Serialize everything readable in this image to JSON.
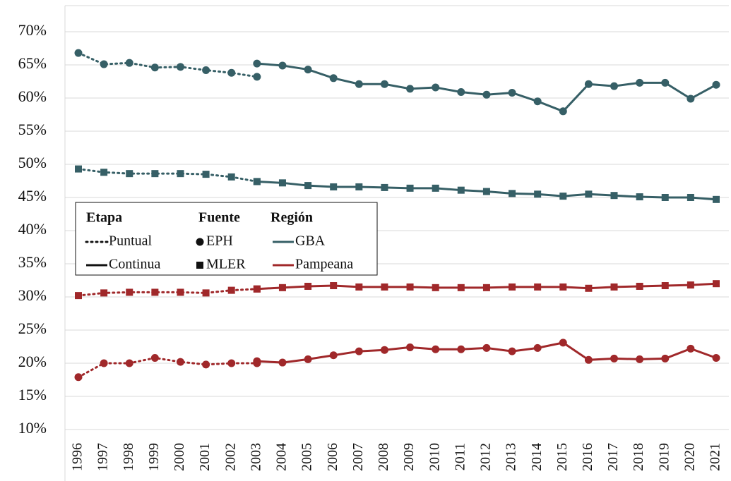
{
  "chart_data": {
    "type": "line",
    "categories": [
      "1996",
      "1997",
      "1998",
      "1999",
      "2000",
      "2001",
      "2002",
      "2003",
      "2004",
      "2005",
      "2006",
      "2007",
      "2008",
      "2009",
      "2010",
      "2011",
      "2012",
      "2013",
      "2014",
      "2015",
      "2016",
      "2017",
      "2018",
      "2019",
      "2020",
      "2021"
    ],
    "ylim": [
      10,
      70
    ],
    "yticks": [
      {
        "value": 10,
        "label": "10%"
      },
      {
        "value": 15,
        "label": "15%"
      },
      {
        "value": 20,
        "label": "20%"
      },
      {
        "value": 25,
        "label": "25%"
      },
      {
        "value": 30,
        "label": "30%"
      },
      {
        "value": 35,
        "label": "35%"
      },
      {
        "value": 40,
        "label": "40%"
      },
      {
        "value": 45,
        "label": "45%"
      },
      {
        "value": 50,
        "label": "50%"
      },
      {
        "value": 55,
        "label": "55%"
      },
      {
        "value": 60,
        "label": "60%"
      },
      {
        "value": 65,
        "label": "65%"
      },
      {
        "value": 70,
        "label": "70%"
      }
    ],
    "grid": true,
    "legend": {
      "position": "center-left",
      "groups": [
        {
          "title": "Etapa",
          "items": [
            {
              "label": "Puntual",
              "dashed": true
            },
            {
              "label": "Continua",
              "dashed": false
            }
          ]
        },
        {
          "title": "Fuente",
          "items": [
            {
              "label": "EPH",
              "marker": "circle"
            },
            {
              "label": "MLER",
              "marker": "square"
            }
          ]
        },
        {
          "title": "Región",
          "items": [
            {
              "label": "GBA",
              "color": "#365f66"
            },
            {
              "label": "Pampeana",
              "color": "#a0282a"
            }
          ]
        }
      ]
    },
    "series": [
      {
        "stage": 0,
        "source": 0,
        "region": 0,
        "values": [
          66.8,
          65.1,
          65.3,
          64.6,
          64.7,
          64.2,
          63.8,
          63.2,
          null,
          null,
          null,
          null,
          null,
          null,
          null,
          null,
          null,
          null,
          null,
          null,
          null,
          null,
          null,
          null,
          null,
          null
        ]
      },
      {
        "stage": 1,
        "source": 0,
        "region": 0,
        "values": [
          null,
          null,
          null,
          null,
          null,
          null,
          null,
          65.2,
          64.9,
          64.3,
          63.0,
          62.1,
          62.1,
          61.4,
          61.6,
          60.9,
          60.5,
          60.8,
          59.5,
          58.0,
          62.1,
          61.8,
          62.3,
          62.3,
          59.9,
          62.0
        ]
      },
      {
        "stage": 0,
        "source": 1,
        "region": 0,
        "values": [
          49.3,
          48.8,
          48.6,
          48.6,
          48.6,
          48.5,
          48.1,
          47.4,
          null,
          null,
          null,
          null,
          null,
          null,
          null,
          null,
          null,
          null,
          null,
          null,
          null,
          null,
          null,
          null,
          null,
          null
        ]
      },
      {
        "stage": 1,
        "source": 1,
        "region": 0,
        "values": [
          null,
          null,
          null,
          null,
          null,
          null,
          null,
          47.4,
          47.2,
          46.8,
          46.6,
          46.6,
          46.5,
          46.4,
          46.4,
          46.1,
          45.9,
          45.6,
          45.5,
          45.2,
          45.5,
          45.3,
          45.1,
          45.0,
          45.0,
          44.7
        ]
      },
      {
        "stage": 0,
        "source": 1,
        "region": 1,
        "values": [
          30.2,
          30.6,
          30.7,
          30.7,
          30.7,
          30.6,
          31.0,
          31.2,
          null,
          null,
          null,
          null,
          null,
          null,
          null,
          null,
          null,
          null,
          null,
          null,
          null,
          null,
          null,
          null,
          null,
          null
        ]
      },
      {
        "stage": 1,
        "source": 1,
        "region": 1,
        "values": [
          null,
          null,
          null,
          null,
          null,
          null,
          null,
          31.2,
          31.4,
          31.6,
          31.7,
          31.5,
          31.5,
          31.5,
          31.4,
          31.4,
          31.4,
          31.5,
          31.5,
          31.5,
          31.3,
          31.5,
          31.6,
          31.7,
          31.8,
          32.0
        ]
      },
      {
        "stage": 0,
        "source": 0,
        "region": 1,
        "values": [
          17.9,
          20.0,
          20.0,
          20.8,
          20.2,
          19.8,
          20.0,
          20.0,
          null,
          null,
          null,
          null,
          null,
          null,
          null,
          null,
          null,
          null,
          null,
          null,
          null,
          null,
          null,
          null,
          null,
          null
        ]
      },
      {
        "stage": 1,
        "source": 0,
        "region": 1,
        "values": [
          null,
          null,
          null,
          null,
          null,
          null,
          null,
          20.3,
          20.1,
          20.6,
          21.2,
          21.8,
          22.0,
          22.4,
          22.1,
          22.1,
          22.3,
          21.8,
          22.3,
          23.1,
          20.5,
          20.7,
          20.6,
          20.7,
          22.2,
          20.8
        ]
      }
    ]
  }
}
